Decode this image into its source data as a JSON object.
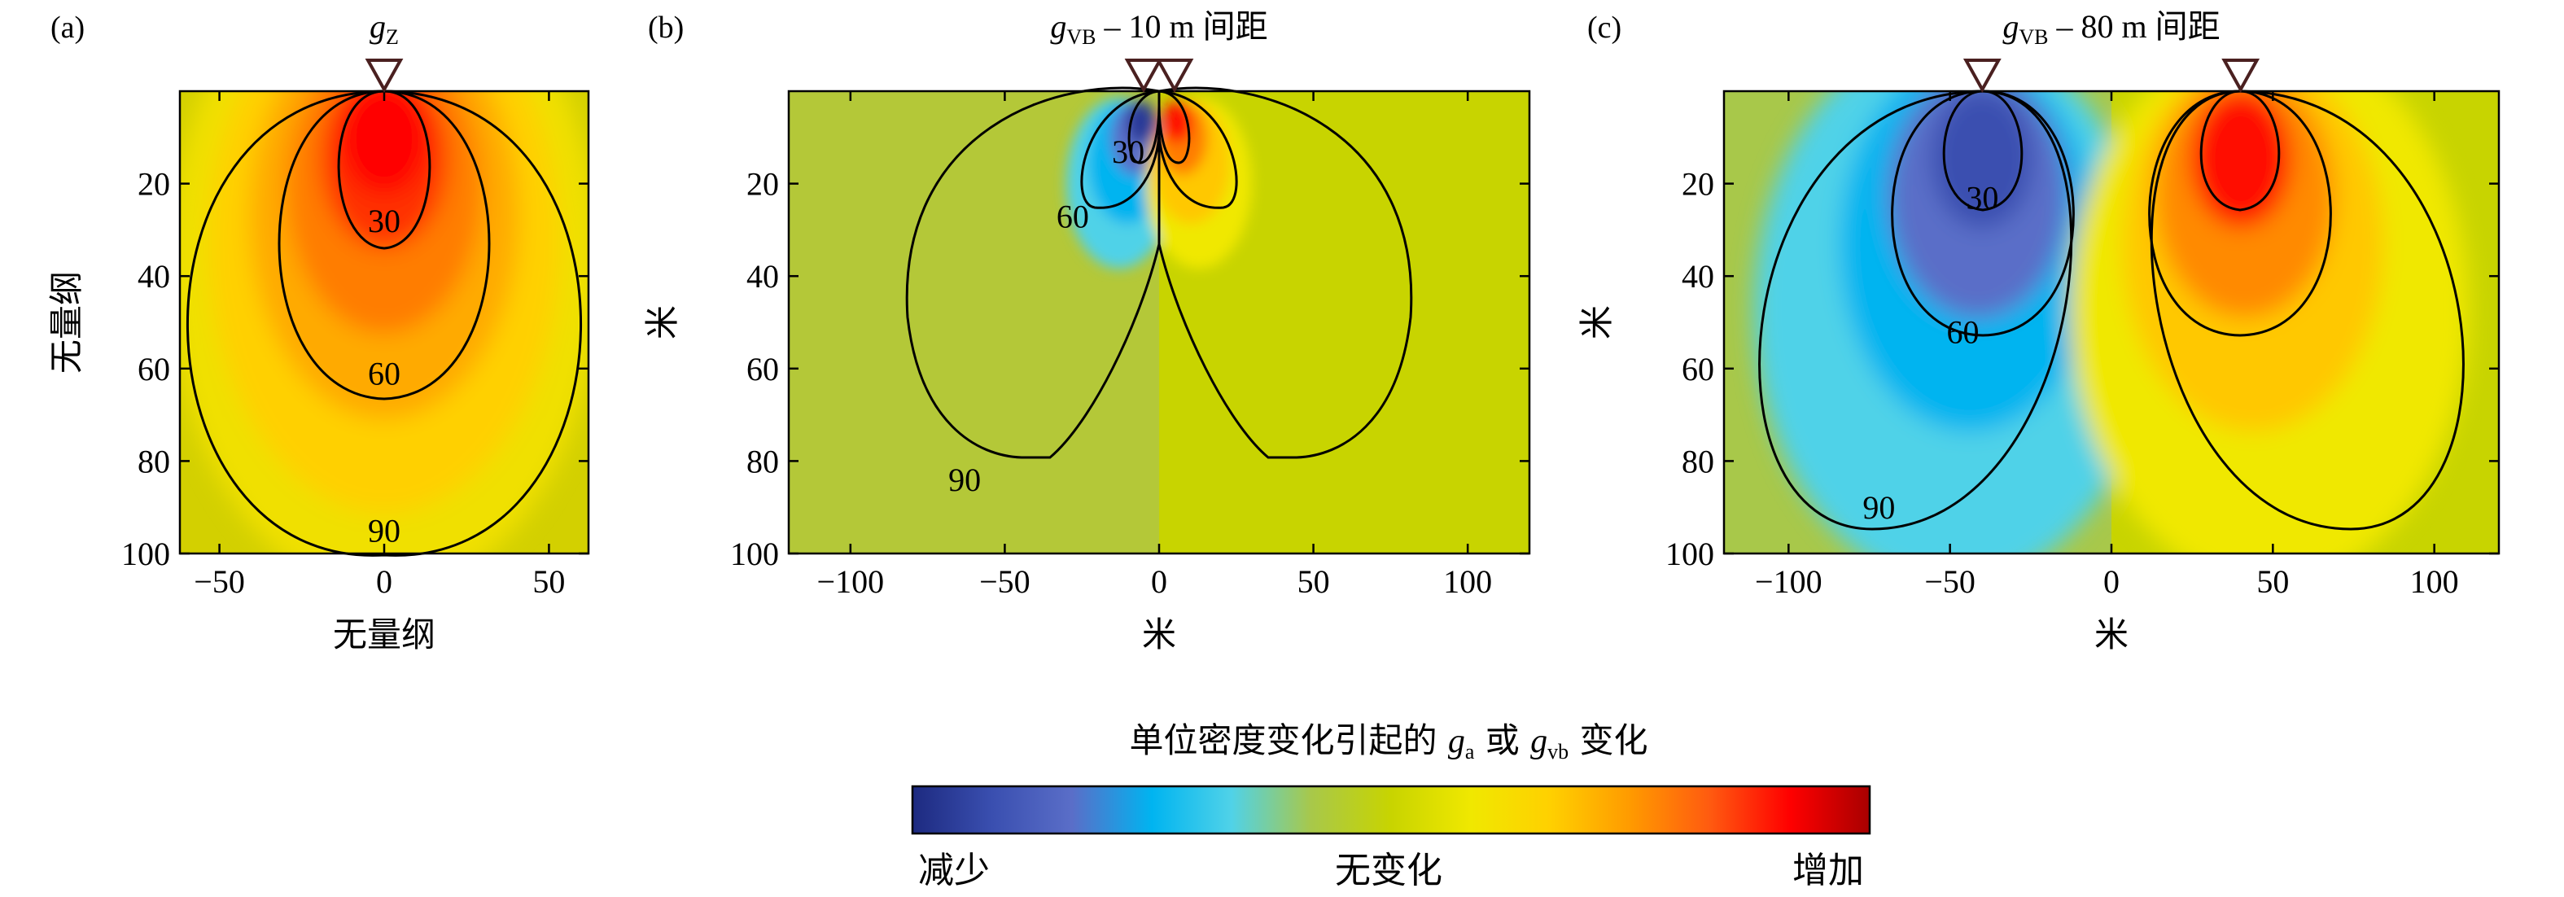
{
  "chart_data": [
    {
      "panel_label": "(a)",
      "type": "heatmap",
      "title_main": "g",
      "title_sub": "Z",
      "title_rest": "",
      "xlabel": "无量纲",
      "ylabel": "无量纲",
      "xlim": [
        -62,
        62
      ],
      "ylim": [
        0,
        100
      ],
      "y_inverted": true,
      "xticks": [
        -50,
        0,
        50
      ],
      "yticks": [
        20,
        40,
        60,
        80,
        100
      ],
      "stations": [
        0
      ],
      "contour_levels": [
        30,
        60,
        90
      ],
      "contour_labels": [
        {
          "text": "30",
          "x": 0,
          "y": 28
        },
        {
          "text": "60",
          "x": 0,
          "y": 61
        },
        {
          "text": "90",
          "x": 0,
          "y": 95
        }
      ]
    },
    {
      "panel_label": "(b)",
      "type": "heatmap",
      "title_main": "g",
      "title_sub": "VB",
      "title_rest": " – 10 m 间距",
      "xlabel": "米",
      "ylabel": "米",
      "xlim": [
        -120,
        120
      ],
      "ylim": [
        0,
        100
      ],
      "y_inverted": true,
      "xticks": [
        -100,
        -50,
        0,
        50,
        100
      ],
      "yticks": [
        20,
        40,
        60,
        80,
        100
      ],
      "stations": [
        -5,
        5
      ],
      "contour_levels": [
        30,
        60,
        90
      ],
      "contour_labels": [
        {
          "text": "30",
          "x": -10,
          "y": 13
        },
        {
          "text": "60",
          "x": -28,
          "y": 27
        },
        {
          "text": "90",
          "x": -63,
          "y": 84
        }
      ]
    },
    {
      "panel_label": "(c)",
      "type": "heatmap",
      "title_main": "g",
      "title_sub": "VB",
      "title_rest": " – 80 m 间距",
      "xlabel": "米",
      "ylabel": "米",
      "xlim": [
        -120,
        120
      ],
      "ylim": [
        0,
        100
      ],
      "y_inverted": true,
      "xticks": [
        -100,
        -50,
        0,
        50,
        100
      ],
      "yticks": [
        20,
        40,
        60,
        80,
        100
      ],
      "stations": [
        -40,
        40
      ],
      "contour_levels": [
        30,
        60,
        90
      ],
      "contour_labels": [
        {
          "text": "30",
          "x": -40,
          "y": 23
        },
        {
          "text": "60",
          "x": -46,
          "y": 52
        },
        {
          "text": "90",
          "x": -72,
          "y": 90
        }
      ]
    }
  ],
  "colorbar": {
    "title_pre": "单位密度变化引起的 ",
    "ga_main": "g",
    "ga_sub": "a",
    "mid_text": " 或 ",
    "gvb_main": "g",
    "gvb_sub": "vb",
    "title_post": " 变化",
    "label_left": "减少",
    "label_center": "无变化",
    "label_right": "增加",
    "colors": [
      "#1d2a80",
      "#3a4fb0",
      "#5a6ec8",
      "#00b4f0",
      "#50d2e8",
      "#a8c84a",
      "#c8d400",
      "#f0e800",
      "#ffd000",
      "#ff9a00",
      "#ff5a10",
      "#ff0000",
      "#a80000"
    ]
  }
}
